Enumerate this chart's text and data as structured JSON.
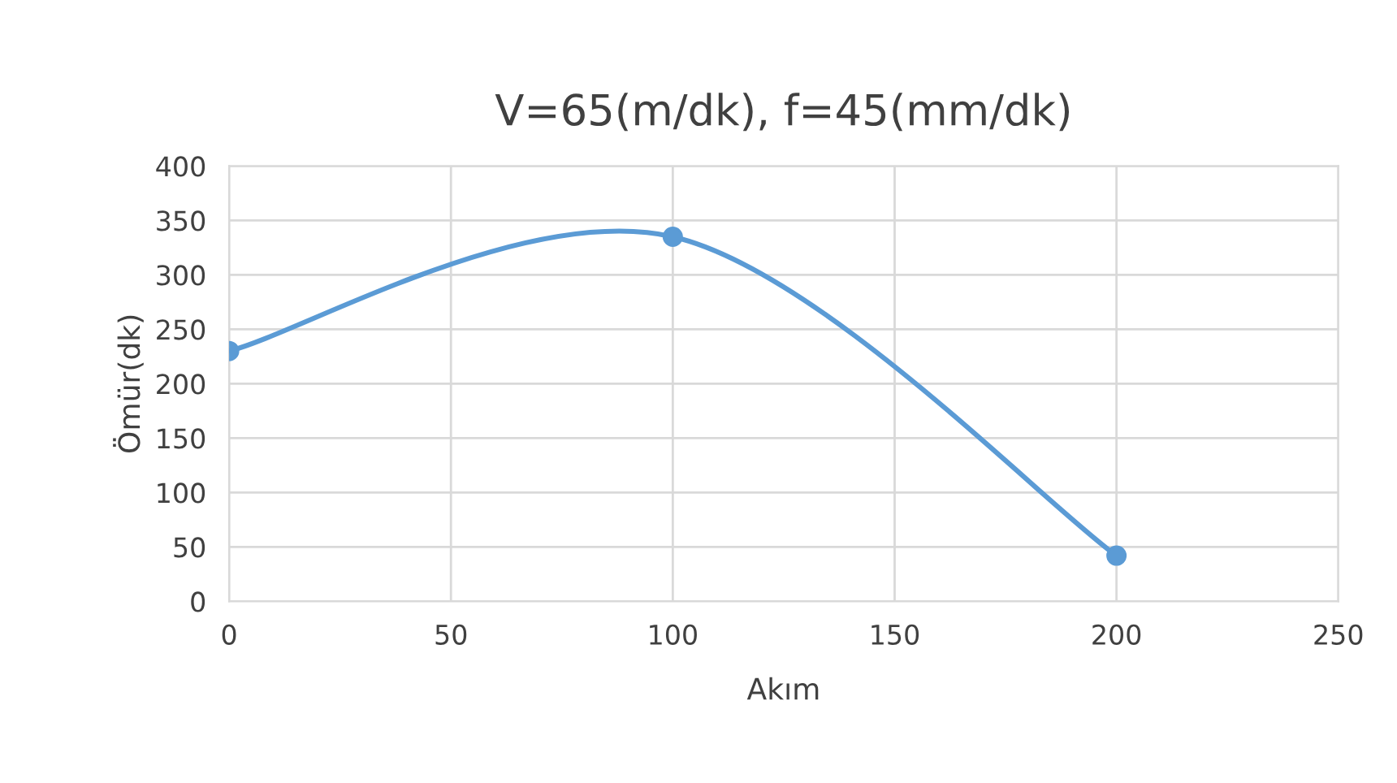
{
  "chart_data": {
    "type": "line",
    "title": "V=65(m/dk), f=45(mm/dk)",
    "xlabel": "Akım",
    "ylabel": "Ömür(dk)",
    "x": [
      0,
      100,
      200
    ],
    "series": [
      {
        "color": "#5b9bd5",
        "values": [
          230,
          335,
          42
        ]
      }
    ],
    "xlim": [
      0,
      250
    ],
    "xticks": [
      0,
      50,
      100,
      150,
      200,
      250
    ],
    "ylim": [
      0,
      400
    ],
    "yticks": [
      0,
      50,
      100,
      150,
      200,
      250,
      300,
      350,
      400
    ],
    "grid": true,
    "marker": "circle",
    "line_style": "solid",
    "legend": false
  }
}
